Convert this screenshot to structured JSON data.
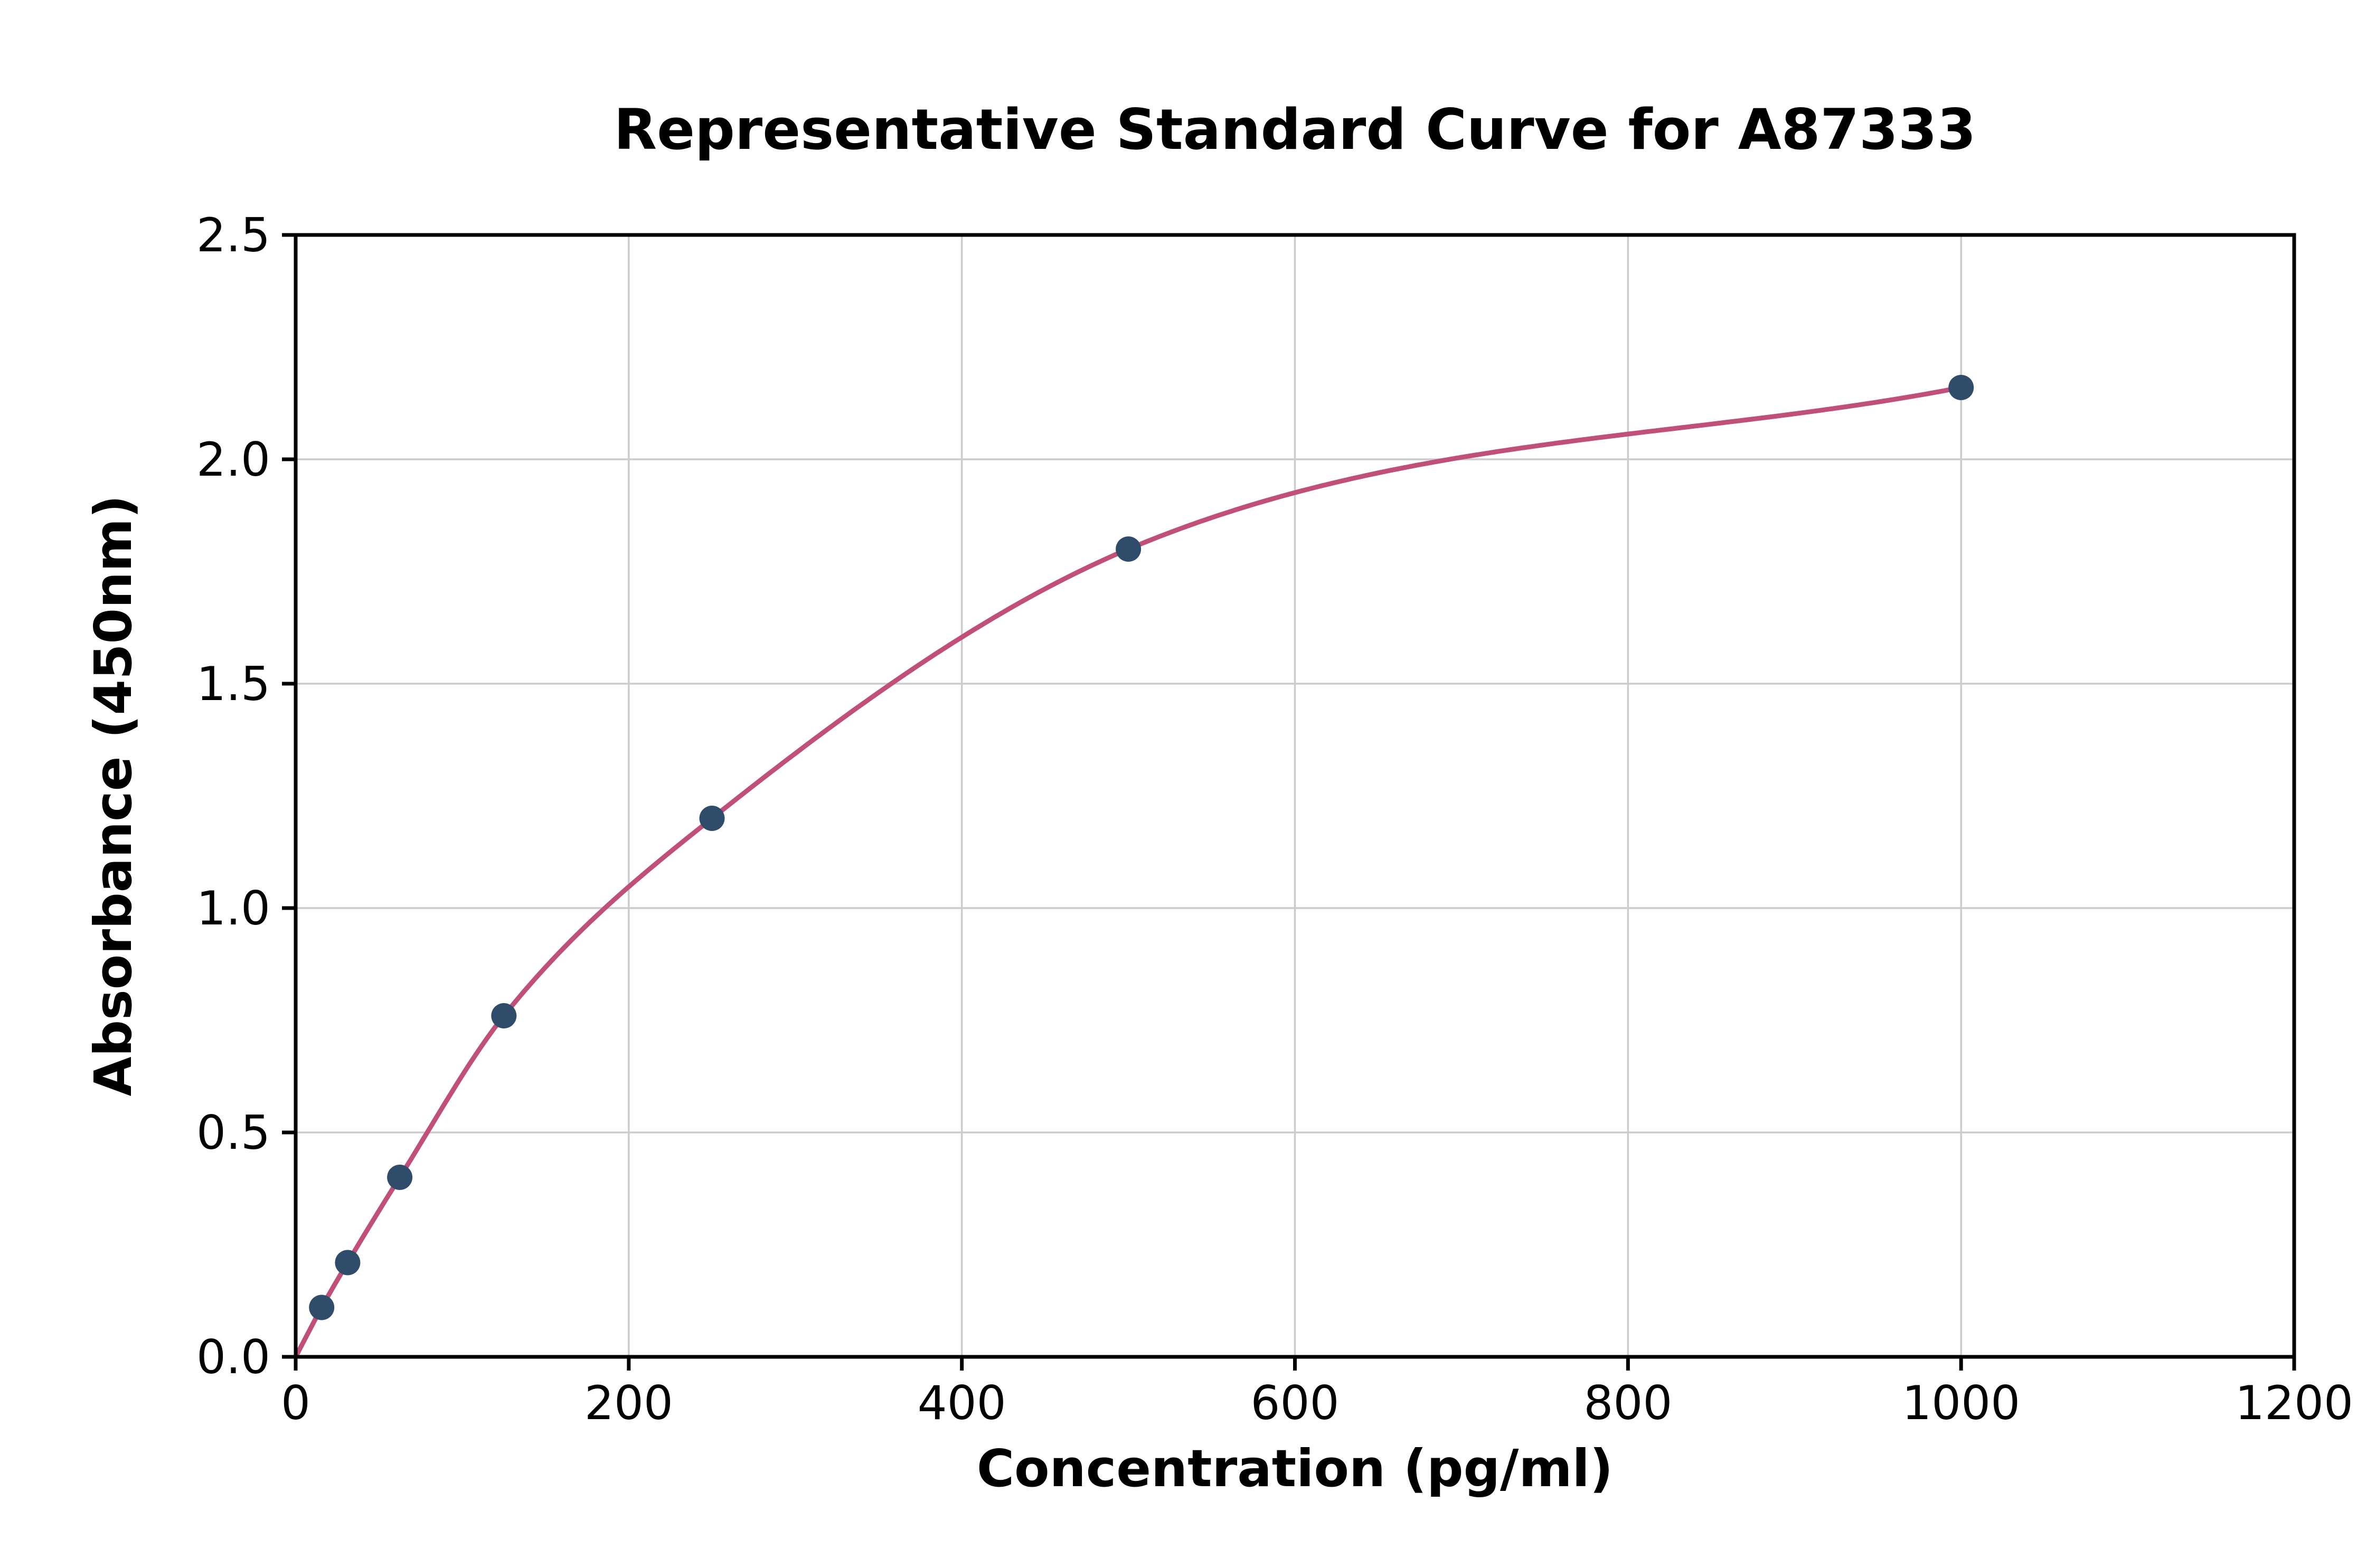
{
  "chart_data": {
    "type": "scatter",
    "title": "Representative Standard Curve for A87333",
    "xlabel": "Concentration (pg/ml)",
    "ylabel": "Absorbance (450nm)",
    "xlim": [
      0,
      1200
    ],
    "ylim": [
      0,
      2.5
    ],
    "x_ticks": [
      0,
      200,
      400,
      600,
      800,
      1000,
      1200
    ],
    "x_tick_labels": [
      "0",
      "200",
      "400",
      "600",
      "800",
      "1000",
      "1200"
    ],
    "y_ticks": [
      0,
      0.5,
      1.0,
      1.5,
      2.0,
      2.5
    ],
    "y_tick_labels": [
      "0.0",
      "0.5",
      "1.0",
      "1.5",
      "2.0",
      "2.5"
    ],
    "grid": true,
    "legend": "none",
    "points": {
      "x": [
        15.6,
        31.2,
        62.5,
        125,
        250,
        500,
        1000
      ],
      "y": [
        0.11,
        0.21,
        0.4,
        0.76,
        1.2,
        1.8,
        2.16
      ]
    },
    "curve_through_origin": true,
    "colors": {
      "curve": "#c04f79",
      "points": "#2f4d6a",
      "grid": "#cccccc",
      "axes": "#000000",
      "background": "#ffffff"
    }
  }
}
